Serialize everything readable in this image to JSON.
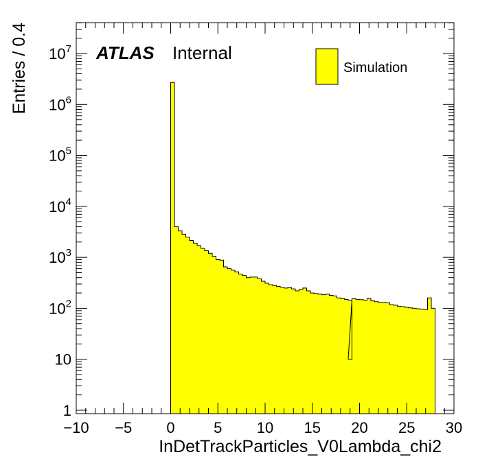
{
  "chart_data": {
    "type": "bar",
    "subtype": "histogram",
    "xlabel": "InDetTrackParticles_V0Lambda_chi2",
    "ylabel": "Entries / 0.4",
    "experiment_label": "ATLAS",
    "status_label": "Internal",
    "xlim": [
      -10,
      30
    ],
    "ylim": [
      0.8,
      40000000
    ],
    "y_scale": "log",
    "x_ticks": [
      "−10",
      "−5",
      "0",
      "5",
      "10",
      "15",
      "20",
      "25",
      "30"
    ],
    "y_ticks": [
      {
        "base": "1",
        "exp": ""
      },
      {
        "base": "10",
        "exp": ""
      },
      {
        "base": "10",
        "exp": "2"
      },
      {
        "base": "10",
        "exp": "3"
      },
      {
        "base": "10",
        "exp": "4"
      },
      {
        "base": "10",
        "exp": "5"
      },
      {
        "base": "10",
        "exp": "6"
      },
      {
        "base": "10",
        "exp": "7"
      }
    ],
    "bin_width": 0.4,
    "bin_start": 0.0,
    "series": [
      {
        "name": "Simulation",
        "color": "#ffff00",
        "edge_color": "#000000",
        "values": [
          2700000,
          4000,
          3300,
          2850,
          2500,
          2150,
          1900,
          1700,
          1500,
          1350,
          1200,
          1050,
          900,
          880,
          650,
          600,
          560,
          520,
          470,
          440,
          400,
          410,
          410,
          380,
          340,
          310,
          290,
          280,
          270,
          260,
          250,
          255,
          240,
          220,
          235,
          250,
          220,
          200,
          195,
          190,
          185,
          190,
          180,
          175,
          160,
          155,
          150,
          145,
          155,
          150,
          148,
          145,
          155,
          140,
          135,
          130,
          130,
          128,
          118,
          115,
          110,
          108,
          105,
          102,
          100,
          98,
          96,
          95,
          160,
          100
        ]
      }
    ],
    "extra_bins": [
      {
        "x_start": 18.8,
        "value": 10
      }
    ],
    "legend_position": "top-right",
    "grid": false
  }
}
